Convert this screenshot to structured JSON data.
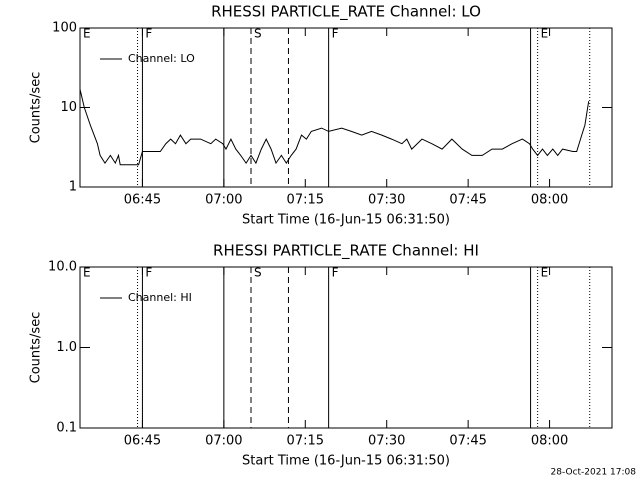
{
  "chart_data": [
    {
      "type": "line",
      "title": "RHESSI PARTICLE_RATE Channel: LO",
      "ylabel": "Counts/sec",
      "xlabel": "Start Time (16-Jun-15 06:31:50)",
      "log_y": true,
      "ylim": [
        1,
        100
      ],
      "yticks": [
        1,
        10,
        100
      ],
      "xlim": [
        393.5,
        491.5
      ],
      "xticks": [
        {
          "value": 405,
          "label": "06:45"
        },
        {
          "value": 420,
          "label": "07:00"
        },
        {
          "value": 435,
          "label": "07:15"
        },
        {
          "value": 450,
          "label": "07:30"
        },
        {
          "value": 465,
          "label": "07:45"
        },
        {
          "value": 480,
          "label": "08:00"
        }
      ],
      "legend": "upper left",
      "markers": [
        {
          "x": 393.5,
          "style": "solid",
          "label": "E"
        },
        {
          "x": 404.1,
          "style": "dotted"
        },
        {
          "x": 405.0,
          "style": "solid",
          "label": "F"
        },
        {
          "x": 420.0,
          "style": "solid"
        },
        {
          "x": 425.0,
          "style": "dashed",
          "label": "S"
        },
        {
          "x": 431.9,
          "style": "dashed"
        },
        {
          "x": 439.3,
          "style": "solid",
          "label": "F"
        },
        {
          "x": 476.5,
          "style": "solid"
        },
        {
          "x": 477.8,
          "style": "dotted",
          "label": "E"
        },
        {
          "x": 487.4,
          "style": "dotted"
        }
      ],
      "x": [
        393.5,
        394.3,
        395.4,
        396.7,
        397.2,
        398.1,
        399.1,
        400.0,
        400.6,
        400.9,
        404.3,
        405.0,
        408.3,
        409.3,
        410.2,
        411.1,
        412.0,
        413.0,
        413.9,
        415.7,
        417.6,
        418.5,
        419.8,
        420.4,
        421.3,
        422.2,
        423.1,
        424.1,
        425.0,
        425.9,
        426.9,
        427.8,
        428.7,
        429.6,
        430.6,
        431.5,
        432.4,
        433.3,
        434.3,
        435.2,
        436.1,
        438.0,
        439.3,
        441.7,
        443.5,
        445.4,
        447.2,
        449.1,
        450.9,
        452.8,
        453.7,
        454.6,
        456.5,
        458.3,
        460.2,
        462.0,
        463.9,
        465.7,
        467.6,
        469.4,
        471.3,
        473.1,
        475.0,
        476.3,
        476.9,
        477.8,
        478.7,
        479.6,
        480.6,
        481.5,
        482.4,
        484.3,
        485.0,
        485.7,
        486.5,
        487.2
      ],
      "series": [
        {
          "name": "Channel: LO",
          "color": "#000000",
          "values": [
            17,
            10,
            6,
            3.5,
            2.5,
            2,
            2.5,
            2,
            2.5,
            1.9,
            1.9,
            2.8,
            2.8,
            3.5,
            4,
            3.5,
            4.5,
            3.5,
            4,
            4,
            3.5,
            4,
            3.5,
            3,
            4,
            3,
            2.5,
            2,
            2.5,
            2,
            3,
            4,
            3,
            2,
            2.5,
            2,
            2.5,
            3,
            4.5,
            4,
            5,
            5.5,
            5,
            5.5,
            5,
            4.5,
            5,
            4.5,
            4,
            3.5,
            4,
            3,
            4,
            3.5,
            3,
            4,
            3,
            2.5,
            2.5,
            3,
            3,
            3.5,
            4,
            3.5,
            3,
            2.5,
            3,
            2.5,
            3,
            2.5,
            3,
            2.8,
            2.8,
            4,
            6,
            12
          ]
        }
      ]
    },
    {
      "type": "line",
      "title": "RHESSI PARTICLE_RATE Channel: HI",
      "ylabel": "Counts/sec",
      "xlabel": "Start Time (16-Jun-15 06:31:50)",
      "log_y": true,
      "ylim": [
        0.1,
        10
      ],
      "yticks": [
        0.1,
        {
          "value": 1,
          "label": "1.0"
        },
        {
          "value": 10,
          "label": "10.0"
        }
      ],
      "xlim": [
        393.5,
        491.5
      ],
      "xticks": [
        {
          "value": 405,
          "label": "06:45"
        },
        {
          "value": 420,
          "label": "07:00"
        },
        {
          "value": 435,
          "label": "07:15"
        },
        {
          "value": 450,
          "label": "07:30"
        },
        {
          "value": 465,
          "label": "07:45"
        },
        {
          "value": 480,
          "label": "08:00"
        }
      ],
      "legend": "upper left",
      "markers": [
        {
          "x": 393.5,
          "style": "solid",
          "label": "E"
        },
        {
          "x": 404.1,
          "style": "dotted"
        },
        {
          "x": 405.0,
          "style": "solid",
          "label": "F"
        },
        {
          "x": 420.0,
          "style": "solid"
        },
        {
          "x": 425.0,
          "style": "dashed",
          "label": "S"
        },
        {
          "x": 431.9,
          "style": "dashed"
        },
        {
          "x": 439.3,
          "style": "solid",
          "label": "F"
        },
        {
          "x": 476.5,
          "style": "solid"
        },
        {
          "x": 477.8,
          "style": "dotted",
          "label": "E"
        },
        {
          "x": 487.4,
          "style": "dotted"
        }
      ],
      "x": [],
      "series": [
        {
          "name": "Channel: HI",
          "color": "#000000",
          "values": []
        }
      ]
    }
  ],
  "footer": "28-Oct-2021 17:08"
}
